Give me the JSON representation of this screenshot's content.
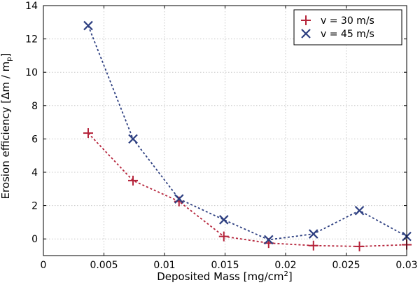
{
  "chart_data": {
    "type": "line",
    "xlabel": "Deposited Mass [mg/cm",
    "xlabel_sup": "2",
    "xlabel_end": "]",
    "ylabel": "Erosion efficiency [Δm / m",
    "ylabel_sub": "p",
    "ylabel_end": "]",
    "xlim": [
      0,
      0.03
    ],
    "ylim": [
      -1,
      14
    ],
    "xticks": [
      0,
      0.005,
      0.01,
      0.015,
      0.02,
      0.025,
      0.03
    ],
    "xtick_labels": [
      "0",
      "0.005",
      "0.01",
      "0.015",
      "0.02",
      "0.025",
      "0.03"
    ],
    "yticks": [
      0,
      2,
      4,
      6,
      8,
      10,
      12,
      14
    ],
    "ytick_labels": [
      "0",
      "2",
      "4",
      "6",
      "8",
      "10",
      "12",
      "14"
    ],
    "grid": true,
    "legend_position": "top-right",
    "series": [
      {
        "name": "v = 30 m/s",
        "marker": "plus",
        "color": "#b5233a",
        "x": [
          0.0037,
          0.0074,
          0.0112,
          0.0149,
          0.0186,
          0.0223,
          0.0261,
          0.03
        ],
        "y": [
          6.35,
          3.5,
          2.25,
          0.15,
          -0.25,
          -0.4,
          -0.45,
          -0.35
        ]
      },
      {
        "name": "v = 45 m/s",
        "marker": "x",
        "color": "#2c3e80",
        "x": [
          0.0037,
          0.0074,
          0.0112,
          0.0149,
          0.0186,
          0.0223,
          0.0261,
          0.03
        ],
        "y": [
          12.8,
          6.0,
          2.4,
          1.15,
          -0.05,
          0.3,
          1.7,
          0.15
        ]
      }
    ]
  }
}
